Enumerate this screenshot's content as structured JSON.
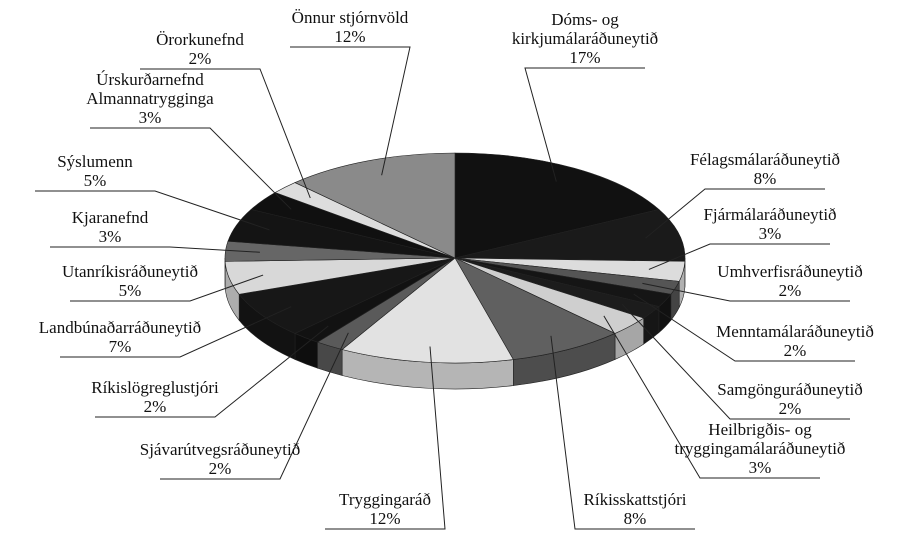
{
  "chart_data": {
    "type": "pie",
    "categories": [
      "Dóms- og\nkirkjumálaráðuneytið",
      "Félagsmálaráðuneytið",
      "Fjármálaráðuneytið",
      "Umhverfisráðuneytið",
      "Menntamálaráðuneytið",
      "Samgönguráðuneytið",
      "Heilbrigðis- og\ntryggingamálaráðuneytið",
      "Ríkisskattstjóri",
      "Tryggingaráð",
      "Sjávarútvegsráðuneytið",
      "Ríkislögreglustjóri",
      "Landbúnaðarráðuneytið",
      "Utanríkisráðuneytið",
      "Kjaranefnd",
      "Sýslumenn",
      "Úrskurðarnefnd\nAlmannatrygginga",
      "Örorkunefnd",
      "Önnur stjórnvöld"
    ],
    "values": [
      17,
      8,
      3,
      2,
      2,
      2,
      3,
      8,
      12,
      2,
      2,
      7,
      5,
      3,
      5,
      3,
      2,
      12
    ],
    "value_labels": [
      "17%",
      "8%",
      "3%",
      "2%",
      "2%",
      "2%",
      "3%",
      "8%",
      "12%",
      "2%",
      "2%",
      "7%",
      "5%",
      "3%",
      "5%",
      "3%",
      "2%",
      "12%"
    ],
    "colors": [
      "#111111",
      "#1a1a1a",
      "#dcdcdc",
      "#555555",
      "#151515",
      "#1c1c1c",
      "#cfcfcf",
      "#606060",
      "#e2e2e2",
      "#5a5a5a",
      "#121212",
      "#171717",
      "#d8d8d8",
      "#666666",
      "#141414",
      "#101010",
      "#dddddd",
      "#8a8a8a"
    ]
  }
}
